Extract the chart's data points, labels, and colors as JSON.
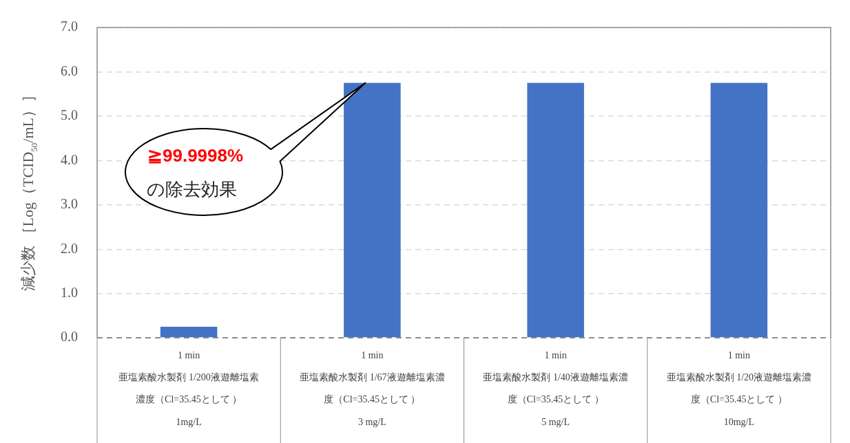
{
  "chart_data": {
    "type": "bar",
    "categories": [
      "1 min\n亜塩素酸水製剤 1/200液遊離塩素濃度（Cl=35.45として ）\n1mg/L",
      "1 min\n亜塩素酸水製剤 1/67液遊離塩素濃度（Cl=35.45として ）\n3 mg/L",
      "1 min\n亜塩素酸水製剤 1/40液遊離塩素濃度（Cl=35.45として ）\n5 mg/L",
      "1 min\n亜塩素酸水製剤 1/20液遊離塩素濃度（Cl=35.45として ）\n10mg/L"
    ],
    "values": [
      0.25,
      5.75,
      5.75,
      5.75
    ],
    "color": "#4472c4",
    "ylabel": "減少数 ［Log（TCID$_{50}$/mL）］",
    "ylim": [
      0,
      7
    ],
    "yticks": [
      {
        "value": 0,
        "label": "0.0"
      },
      {
        "value": 1,
        "label": "1.0"
      },
      {
        "value": 2,
        "label": "2.0"
      },
      {
        "value": 3,
        "label": "3.0"
      },
      {
        "value": 4,
        "label": "4.0"
      },
      {
        "value": 5,
        "label": "5.0"
      },
      {
        "value": 6,
        "label": "6.0"
      },
      {
        "value": 7,
        "label": "7.0"
      }
    ],
    "grid": "y",
    "legend": false,
    "annotations": [
      "≧99.9998%",
      "の除去効果"
    ]
  }
}
